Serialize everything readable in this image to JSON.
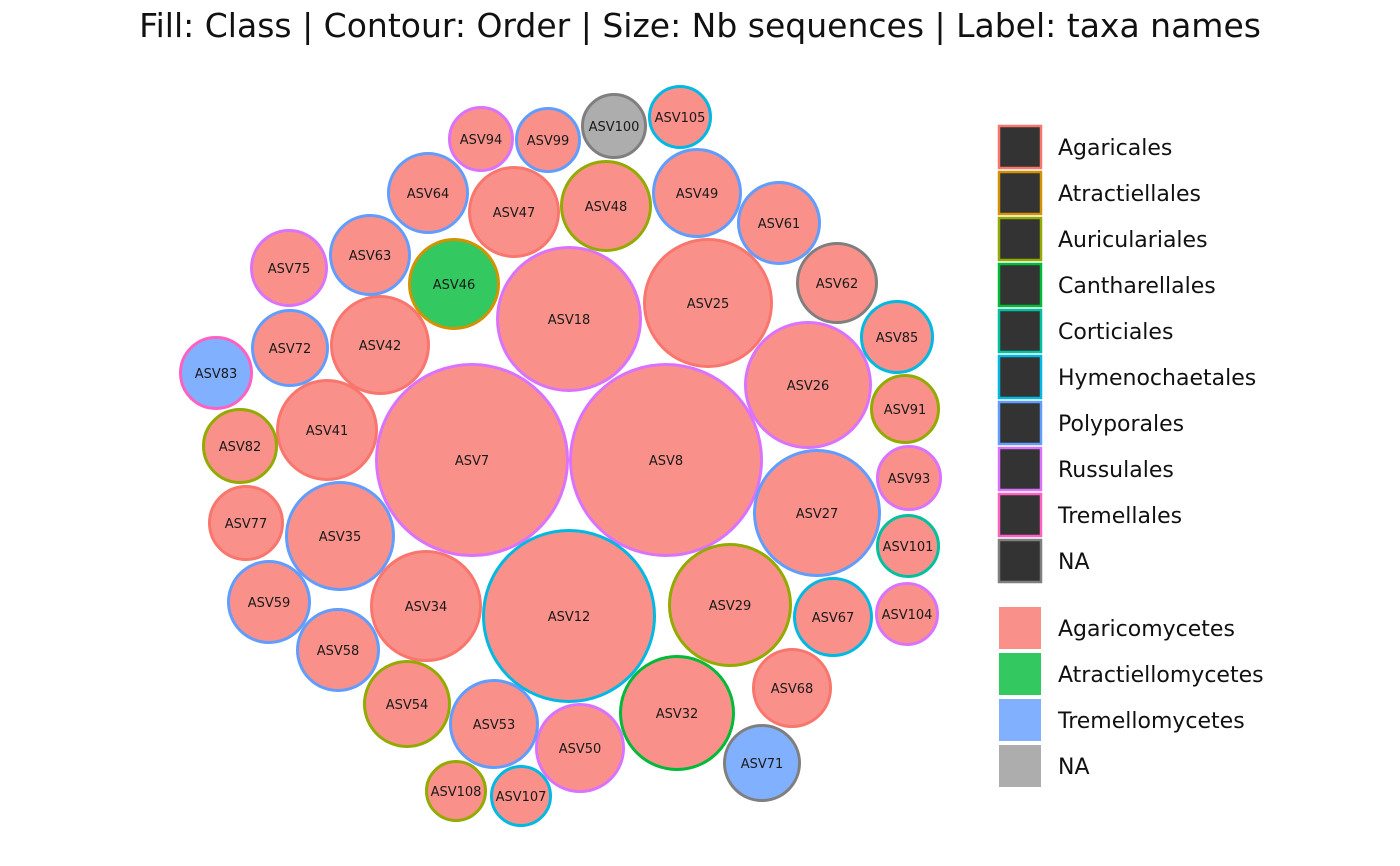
{
  "chart_data": {
    "type": "bubble-pack",
    "title": "Fill: Class | Contour: Order | Size: Nb sequences | Label: taxa names",
    "legend_order": {
      "title": "",
      "placement": "right",
      "entries": [
        {
          "name": "Agaricales",
          "color": "#F8766D"
        },
        {
          "name": "Atractiellales",
          "color": "#D39200"
        },
        {
          "name": "Auriculariales",
          "color": "#93AA00"
        },
        {
          "name": "Cantharellales",
          "color": "#00BA38"
        },
        {
          "name": "Corticiales",
          "color": "#00C19F"
        },
        {
          "name": "Hymenochaetales",
          "color": "#00B9E3"
        },
        {
          "name": "Polyporales",
          "color": "#619CFF"
        },
        {
          "name": "Russulales",
          "color": "#DB72FB"
        },
        {
          "name": "Tremellales",
          "color": "#FF61C3"
        },
        {
          "name": "NA",
          "color": "#7F7F7F"
        }
      ]
    },
    "legend_class": {
      "title": "",
      "placement": "right",
      "entries": [
        {
          "name": "Agaricomycetes",
          "color": "#F8766D"
        },
        {
          "name": "Atractiellomycetes",
          "color": "#00BA38"
        },
        {
          "name": "Tremellomycetes",
          "color": "#619CFF"
        },
        {
          "name": "NA",
          "color": "#999999"
        }
      ]
    },
    "bubbles": [
      {
        "label": "ASV7",
        "class": "Agaricomycetes",
        "order": "Russulales"
      },
      {
        "label": "ASV8",
        "class": "Agaricomycetes",
        "order": "Russulales"
      },
      {
        "label": "ASV12",
        "class": "Agaricomycetes",
        "order": "Hymenochaetales"
      },
      {
        "label": "ASV18",
        "class": "Agaricomycetes",
        "order": "Russulales"
      },
      {
        "label": "ASV25",
        "class": "Agaricomycetes",
        "order": "Agaricales"
      },
      {
        "label": "ASV26",
        "class": "Agaricomycetes",
        "order": "Russulales"
      },
      {
        "label": "ASV27",
        "class": "Agaricomycetes",
        "order": "Polyporales"
      },
      {
        "label": "ASV29",
        "class": "Agaricomycetes",
        "order": "Auriculariales"
      },
      {
        "label": "ASV32",
        "class": "Agaricomycetes",
        "order": "Cantharellales"
      },
      {
        "label": "ASV34",
        "class": "Agaricomycetes",
        "order": "Agaricales"
      },
      {
        "label": "ASV35",
        "class": "Agaricomycetes",
        "order": "Polyporales"
      },
      {
        "label": "ASV41",
        "class": "Agaricomycetes",
        "order": "Agaricales"
      },
      {
        "label": "ASV42",
        "class": "Agaricomycetes",
        "order": "Agaricales"
      },
      {
        "label": "ASV46",
        "class": "Atractiellomycetes",
        "order": "Atractiellales"
      },
      {
        "label": "ASV47",
        "class": "Agaricomycetes",
        "order": "Agaricales"
      },
      {
        "label": "ASV48",
        "class": "Agaricomycetes",
        "order": "Auriculariales"
      },
      {
        "label": "ASV49",
        "class": "Agaricomycetes",
        "order": "Polyporales"
      },
      {
        "label": "ASV50",
        "class": "Agaricomycetes",
        "order": "Russulales"
      },
      {
        "label": "ASV53",
        "class": "Agaricomycetes",
        "order": "Polyporales"
      },
      {
        "label": "ASV54",
        "class": "Agaricomycetes",
        "order": "Auriculariales"
      },
      {
        "label": "ASV58",
        "class": "Agaricomycetes",
        "order": "Polyporales"
      },
      {
        "label": "ASV59",
        "class": "Agaricomycetes",
        "order": "Polyporales"
      },
      {
        "label": "ASV61",
        "class": "Agaricomycetes",
        "order": "Polyporales"
      },
      {
        "label": "ASV62",
        "class": "Agaricomycetes",
        "order": "NA"
      },
      {
        "label": "ASV63",
        "class": "Agaricomycetes",
        "order": "Polyporales"
      },
      {
        "label": "ASV64",
        "class": "Agaricomycetes",
        "order": "Polyporales"
      },
      {
        "label": "ASV67",
        "class": "Agaricomycetes",
        "order": "Hymenochaetales"
      },
      {
        "label": "ASV68",
        "class": "Agaricomycetes",
        "order": "Agaricales"
      },
      {
        "label": "ASV71",
        "class": "Tremellomycetes",
        "order": "NA"
      },
      {
        "label": "ASV72",
        "class": "Agaricomycetes",
        "order": "Polyporales"
      },
      {
        "label": "ASV75",
        "class": "Agaricomycetes",
        "order": "Russulales"
      },
      {
        "label": "ASV77",
        "class": "Agaricomycetes",
        "order": "Agaricales"
      },
      {
        "label": "ASV82",
        "class": "Agaricomycetes",
        "order": "Auriculariales"
      },
      {
        "label": "ASV83",
        "class": "Tremellomycetes",
        "order": "Tremellales"
      },
      {
        "label": "ASV85",
        "class": "Agaricomycetes",
        "order": "Hymenochaetales"
      },
      {
        "label": "ASV91",
        "class": "Agaricomycetes",
        "order": "Auriculariales"
      },
      {
        "label": "ASV93",
        "class": "Agaricomycetes",
        "order": "Russulales"
      },
      {
        "label": "ASV94",
        "class": "Agaricomycetes",
        "order": "Russulales"
      },
      {
        "label": "ASV99",
        "class": "Agaricomycetes",
        "order": "Polyporales"
      },
      {
        "label": "ASV100",
        "class": "NA",
        "order": "NA"
      },
      {
        "label": "ASV101",
        "class": "Agaricomycetes",
        "order": "Corticiales"
      },
      {
        "label": "ASV104",
        "class": "Agaricomycetes",
        "order": "Russulales"
      },
      {
        "label": "ASV105",
        "class": "Agaricomycetes",
        "order": "Hymenochaetales"
      },
      {
        "label": "ASV107",
        "class": "Agaricomycetes",
        "order": "Hymenochaetales"
      },
      {
        "label": "ASV108",
        "class": "Agaricomycetes",
        "order": "Auriculariales"
      }
    ]
  }
}
